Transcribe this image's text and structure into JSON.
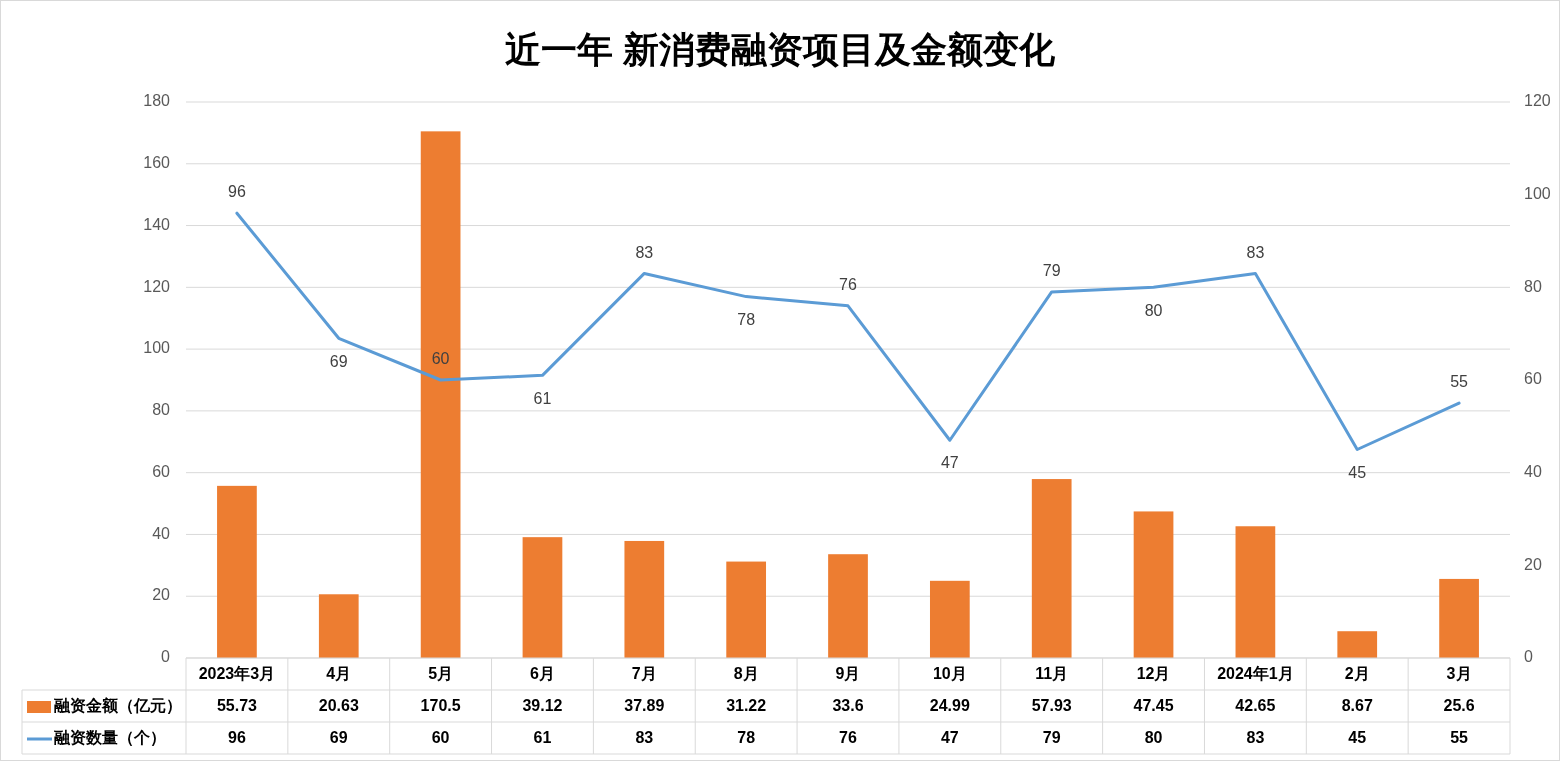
{
  "chart_data": {
    "type": "bar",
    "title": "近一年 新消费融资项目及金额变化",
    "categories": [
      "2023年3月",
      "4月",
      "5月",
      "6月",
      "7月",
      "8月",
      "9月",
      "10月",
      "11月",
      "12月",
      "2024年1月",
      "2月",
      "3月"
    ],
    "series": [
      {
        "name": "融资金额（亿元）",
        "color": "#ed7d31",
        "values": [
          55.73,
          20.63,
          170.5,
          39.12,
          37.89,
          31.22,
          33.6,
          24.99,
          57.93,
          47.45,
          42.65,
          8.67,
          25.6
        ]
      },
      {
        "name": "融资数量（个）",
        "type": "line",
        "axis": "y2",
        "color": "#5b9bd5",
        "values": [
          96,
          69,
          60,
          61,
          83,
          78,
          76,
          47,
          79,
          80,
          83,
          45,
          55
        ]
      }
    ],
    "annotations": [
      {
        "text": "96",
        "x": "2023年3月",
        "y": 144
      },
      {
        "text": "69",
        "x": "4月",
        "y": 103.5
      },
      {
        "text": "60",
        "x": "5月",
        "y": 90
      },
      {
        "text": "61",
        "x": "6月",
        "y": 91.5
      },
      {
        "text": "83",
        "x": "7月",
        "y": 124.5
      },
      {
        "text": "78",
        "x": "8月",
        "y": 117
      },
      {
        "text": "76",
        "x": "9月",
        "y": 114
      },
      {
        "text": "47",
        "x": "10月",
        "y": 70.5
      },
      {
        "text": "79",
        "x": "11月",
        "y": 118.5
      },
      {
        "text": "80",
        "x": "12月",
        "y": 120
      },
      {
        "text": "83",
        "x": "2024年1月",
        "y": 124.5
      },
      {
        "text": "45",
        "x": "2月",
        "y": 67.5
      },
      {
        "text": "55",
        "x": "3月",
        "y": 82.5
      }
    ],
    "ylim": [
      0,
      180
    ],
    "yticks": [
      0,
      20,
      40,
      60,
      80,
      100,
      120,
      140,
      160,
      180
    ],
    "y2lim": [
      0,
      120
    ],
    "y2ticks": [
      0,
      20,
      40,
      60,
      80,
      100,
      120
    ],
    "grid": "y",
    "legend": "bottom",
    "data_labels": true
  }
}
